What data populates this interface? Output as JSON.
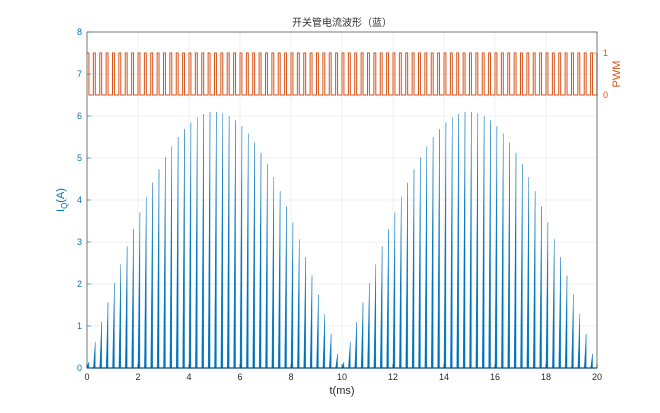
{
  "chart_data": {
    "type": "area",
    "title": "开关管电流波形（蓝）",
    "xlabel": "t(ms)",
    "ylabel_left": {
      "main": "I",
      "sub": "Q",
      "unit": "(A)"
    },
    "ylabel_right": "PWM",
    "xlim": [
      0,
      20
    ],
    "ylim_left": [
      0,
      8
    ],
    "xticks": [
      0,
      2,
      4,
      6,
      8,
      10,
      12,
      14,
      16,
      18,
      20
    ],
    "yticks_left": [
      0,
      1,
      2,
      3,
      4,
      5,
      6,
      7,
      8
    ],
    "yticks_right": [
      0,
      1
    ],
    "grid": true,
    "colors": {
      "current": "#0072BD",
      "pwm": "#D95319",
      "grid": "#e6e6e6",
      "axis": "#262626"
    },
    "series": [
      {
        "kind": "current",
        "peak": 6.1,
        "shape": "abs-sine",
        "half_period_ms": 10,
        "pulses_per_half_period": 40,
        "pulse_duty": 0.3
      },
      {
        "kind": "pwm",
        "levels": [
          0,
          1
        ],
        "pulses_per_half_period": 40,
        "pulse_duty": 0.3,
        "plot_range_left_units": [
          6.5,
          7.5
        ]
      }
    ]
  }
}
